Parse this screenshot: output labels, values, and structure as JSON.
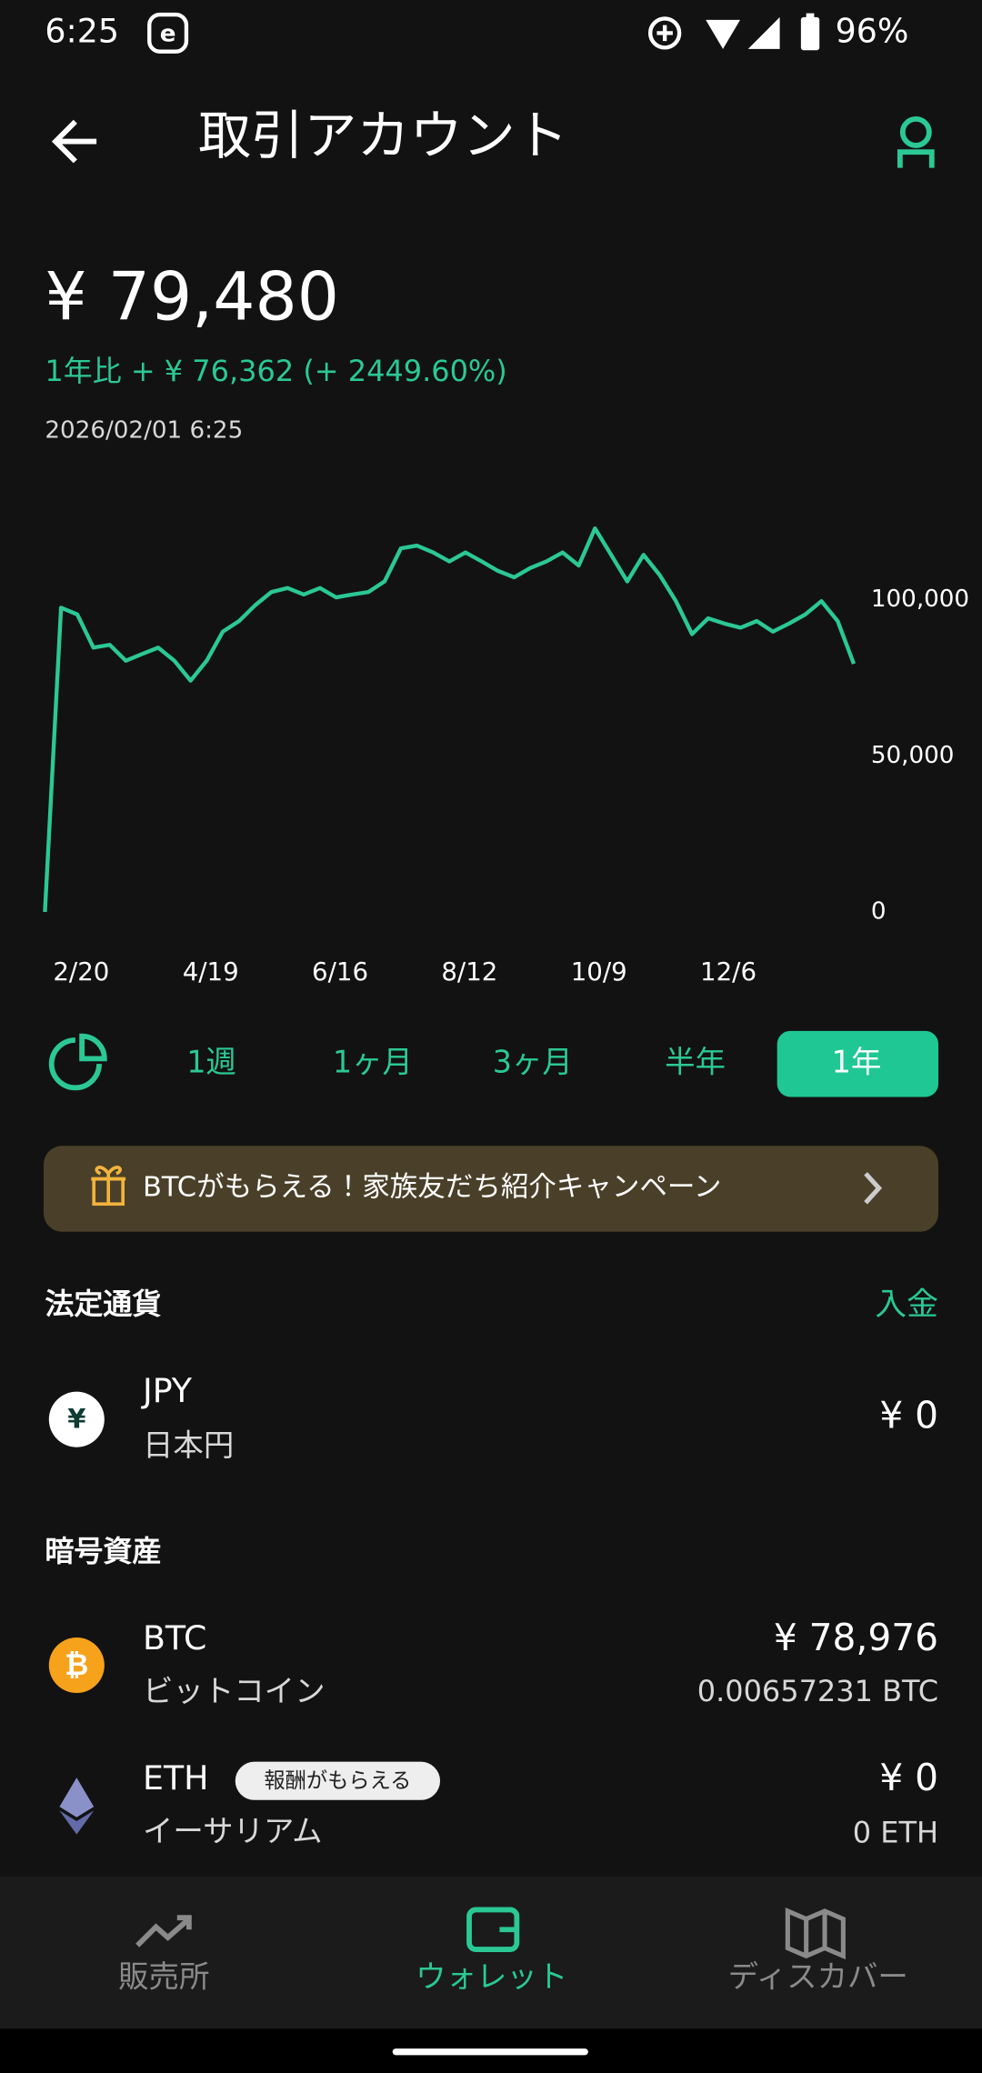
{
  "status_bar": {
    "time": "6:25",
    "battery": "96%"
  },
  "header": {
    "title": "取引アカウント"
  },
  "balance": {
    "amount": "¥ 79,480",
    "change": "1年比 + ¥ 76,362 (+ 2449.60%)",
    "timestamp": "2026/02/01 6:25"
  },
  "chart_data": {
    "type": "line",
    "color": "#2bc895",
    "categories": [
      null,
      null,
      "2/20",
      null,
      null,
      null,
      null,
      null,
      null,
      null,
      "4/19",
      null,
      null,
      null,
      null,
      null,
      null,
      null,
      "6/16",
      null,
      null,
      null,
      null,
      null,
      null,
      null,
      "8/12",
      null,
      null,
      null,
      null,
      null,
      null,
      null,
      "10/9",
      null,
      null,
      null,
      null,
      null,
      null,
      null,
      "12/6",
      null,
      null,
      null,
      null,
      null,
      null,
      null,
      null
    ],
    "values": [
      0,
      97500,
      95300,
      84700,
      85600,
      80500,
      82600,
      84700,
      80500,
      74100,
      80500,
      89800,
      93200,
      98300,
      102500,
      103800,
      101700,
      103800,
      100800,
      101700,
      102500,
      105900,
      116500,
      117400,
      115200,
      112300,
      115200,
      112300,
      109300,
      107200,
      110200,
      112300,
      115200,
      111000,
      122900,
      114400,
      105900,
      114400,
      108000,
      99600,
      89000,
      94100,
      92400,
      91100,
      93200,
      89800,
      92400,
      95300,
      99600,
      93200,
      79480
    ],
    "ylim": [
      0,
      130000
    ],
    "yticks": [
      0,
      {
        "value": 50000,
        "label": "50,000"
      },
      {
        "value": 100000,
        "label": "100,000"
      }
    ],
    "grid": false
  },
  "periods": [
    "1週",
    "1ヶ月",
    "3ヶ月",
    "半年",
    "1年"
  ],
  "banner": {
    "text": "BTCがもらえる！家族友だち紹介キャンペーン"
  },
  "fiat": {
    "title": "法定通貨",
    "action": "入金",
    "items": [
      {
        "symbol": "JPY",
        "name": "日本円",
        "value": "¥ 0"
      }
    ]
  },
  "crypto": {
    "title": "暗号資産",
    "items": [
      {
        "symbol": "BTC",
        "name": "ビットコイン",
        "value": "¥ 78,976",
        "amount": "0.00657231 BTC"
      },
      {
        "symbol": "ETH",
        "badge": "報酬がもらえる",
        "name": "イーサリアム",
        "value": "¥ 0",
        "amount": "0 ETH"
      }
    ]
  },
  "nav": [
    "販売所",
    "ウォレット",
    "ディスカバー"
  ]
}
